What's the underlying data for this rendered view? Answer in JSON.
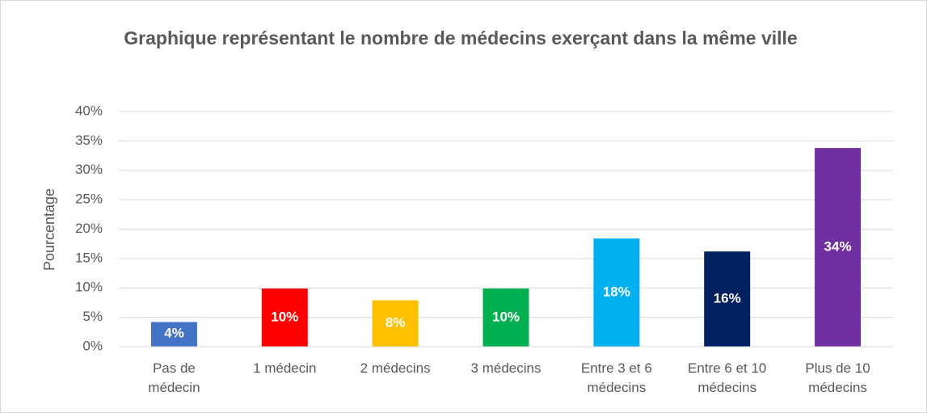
{
  "chart_data": {
    "type": "bar",
    "title": "Graphique représentant le nombre de médecins exerçant dans la même ville",
    "y_label": "Pourcentage",
    "categories": [
      "Pas de médecin",
      "1 médecin",
      "2 médecins",
      "3 médecins",
      "Entre 3 et 6 médecins",
      "Entre 6 et 10 médecins",
      "Plus de 10 médecins"
    ],
    "values": [
      4.2,
      9.9,
      7.9,
      9.9,
      18.4,
      16.2,
      33.8
    ],
    "value_labels": [
      "4%",
      "10%",
      "8%",
      "10%",
      "18%",
      "16%",
      "34%"
    ],
    "colors": [
      "#4472c4",
      "#ff0000",
      "#ffc000",
      "#00b050",
      "#00b0f0",
      "#002060",
      "#7030a0"
    ],
    "ylim": [
      0,
      40
    ],
    "yticks": [
      {
        "value": 0,
        "label": "0%"
      },
      {
        "value": 5,
        "label": "5%"
      },
      {
        "value": 10,
        "label": "10%"
      },
      {
        "value": 15,
        "label": "15%"
      },
      {
        "value": 20,
        "label": "20%"
      },
      {
        "value": 25,
        "label": "25%"
      },
      {
        "value": 30,
        "label": "30%"
      },
      {
        "value": 35,
        "label": "35%"
      },
      {
        "value": 40,
        "label": "40%"
      }
    ],
    "grid": true
  }
}
